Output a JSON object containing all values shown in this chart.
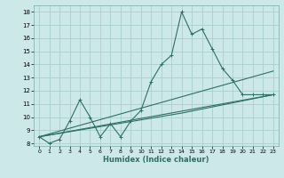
{
  "title": "",
  "xlabel": "Humidex (Indice chaleur)",
  "ylabel": "",
  "bg_color": "#cde8e8",
  "grid_color": "#aad0d0",
  "line_color": "#2d7068",
  "xlim": [
    -0.5,
    23.5
  ],
  "ylim": [
    7.8,
    18.5
  ],
  "xticks": [
    0,
    1,
    2,
    3,
    4,
    5,
    6,
    7,
    8,
    9,
    10,
    11,
    12,
    13,
    14,
    15,
    16,
    17,
    18,
    19,
    20,
    21,
    22,
    23
  ],
  "yticks": [
    8,
    9,
    10,
    11,
    12,
    13,
    14,
    15,
    16,
    17,
    18
  ],
  "series0_x": [
    0,
    1,
    2,
    3,
    4,
    5,
    6,
    7,
    8,
    9,
    10,
    11,
    12,
    13,
    14,
    15,
    16,
    17,
    18,
    19,
    20,
    21,
    22,
    23
  ],
  "series0_y": [
    8.5,
    8.0,
    8.3,
    9.7,
    11.3,
    10.0,
    8.5,
    9.5,
    8.5,
    9.7,
    10.5,
    12.7,
    14.0,
    14.7,
    18.0,
    16.3,
    16.7,
    15.2,
    13.7,
    12.8,
    11.7,
    11.7,
    11.7,
    11.7
  ],
  "series1_x": [
    0,
    23
  ],
  "series1_y": [
    8.5,
    11.7
  ],
  "series2_x": [
    0,
    14,
    23
  ],
  "series2_y": [
    8.5,
    10.3,
    11.7
  ],
  "series3_x": [
    0,
    23
  ],
  "series3_y": [
    8.5,
    13.5
  ]
}
